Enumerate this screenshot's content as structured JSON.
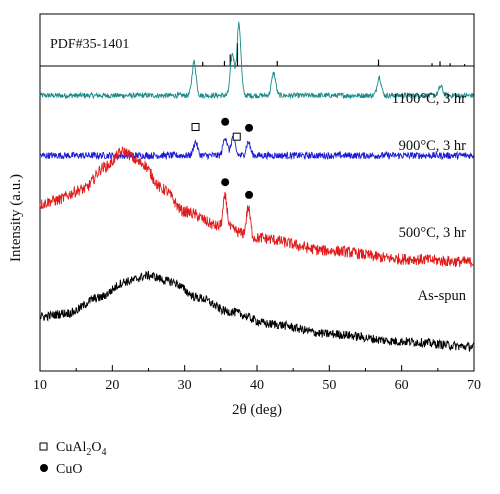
{
  "chart_data": {
    "type": "line",
    "xlabel": "2θ (deg)",
    "ylabel": "Intensity (a.u.)",
    "xlim": [
      10,
      70
    ],
    "xticks": [
      10,
      20,
      30,
      40,
      50,
      60,
      70
    ],
    "grid": false,
    "reference": {
      "label": "PDF#35-1401",
      "peaks": [
        {
          "x": 32.5,
          "h": 0.18
        },
        {
          "x": 35.5,
          "h": 0.22
        },
        {
          "x": 36.3,
          "h": 0.5
        },
        {
          "x": 37.3,
          "h": 1.0
        },
        {
          "x": 42.8,
          "h": 0.22
        },
        {
          "x": 56.8,
          "h": 0.28
        },
        {
          "x": 64.2,
          "h": 0.12
        },
        {
          "x": 65.3,
          "h": 0.2
        },
        {
          "x": 66.7,
          "h": 0.12
        },
        {
          "x": 68.7,
          "h": 0.08
        }
      ]
    },
    "series": [
      {
        "name": "1100°C, 3 hr",
        "color": "#1a8a8a",
        "baseline": [
          [
            10,
            3.9
          ],
          [
            70,
            3.9
          ]
        ],
        "peaks": [
          {
            "x": 31.3,
            "h": 0.45
          },
          {
            "x": 36.6,
            "h": 0.55
          },
          {
            "x": 37.5,
            "h": 0.95
          },
          {
            "x": 42.3,
            "h": 0.3
          },
          {
            "x": 56.9,
            "h": 0.25
          },
          {
            "x": 65.4,
            "h": 0.12
          }
        ]
      },
      {
        "name": "900°C, 3 hr",
        "color": "#1c1cd6",
        "baseline": [
          [
            10,
            3.1
          ],
          [
            70,
            3.1
          ]
        ],
        "peaks": [
          {
            "x": 31.5,
            "h": 0.18
          },
          {
            "x": 35.6,
            "h": 0.25
          },
          {
            "x": 36.7,
            "h": 0.25
          },
          {
            "x": 38.8,
            "h": 0.18
          }
        ],
        "markers": [
          {
            "x": 31.5,
            "symbol": "open-square"
          },
          {
            "x": 35.6,
            "symbol": "filled-circle"
          },
          {
            "x": 37.2,
            "symbol": "open-square"
          },
          {
            "x": 38.9,
            "symbol": "filled-circle"
          }
        ]
      },
      {
        "name": "500°C, 3 hr",
        "color": "#e11b1b",
        "baseline": [
          [
            10,
            2.45
          ],
          [
            12,
            2.5
          ],
          [
            16,
            2.65
          ],
          [
            19,
            2.95
          ],
          [
            21.5,
            3.15
          ],
          [
            24,
            3.0
          ],
          [
            27,
            2.65
          ],
          [
            30,
            2.35
          ],
          [
            35,
            2.15
          ],
          [
            40,
            2.0
          ],
          [
            50,
            1.83
          ],
          [
            60,
            1.72
          ],
          [
            70,
            1.68
          ]
        ],
        "peaks": [
          {
            "x": 35.6,
            "h": 0.4
          },
          {
            "x": 38.8,
            "h": 0.38
          }
        ],
        "markers": [
          {
            "x": 35.6,
            "symbol": "filled-circle"
          },
          {
            "x": 38.9,
            "symbol": "filled-circle"
          }
        ]
      },
      {
        "name": "As-spun",
        "color": "#000000",
        "baseline": [
          [
            10,
            0.95
          ],
          [
            14,
            1.0
          ],
          [
            18,
            1.2
          ],
          [
            22,
            1.42
          ],
          [
            25,
            1.5
          ],
          [
            28,
            1.42
          ],
          [
            32,
            1.2
          ],
          [
            36,
            1.02
          ],
          [
            42,
            0.85
          ],
          [
            50,
            0.72
          ],
          [
            60,
            0.62
          ],
          [
            70,
            0.55
          ]
        ],
        "peaks": []
      }
    ],
    "legend": [
      {
        "symbol": "open-square",
        "label": "CuAl",
        "sub1": "2",
        "mid": "O",
        "sub2": "4"
      },
      {
        "symbol": "filled-circle",
        "label": "CuO"
      }
    ],
    "legend_placement": "below-left"
  }
}
